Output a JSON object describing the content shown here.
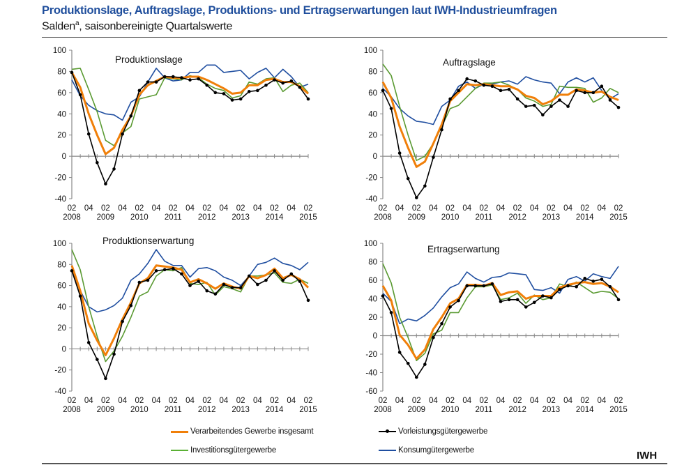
{
  "header": {
    "title": "Produktionslage, Auftragslage, Produktions- und Ertragserwartungen laut IWH-Industrieumfragen",
    "subtitle_main": "Salden",
    "subtitle_sup": "a",
    "subtitle_rest": ", saisonbereinigte Quartalswerte"
  },
  "legend": [
    {
      "name": "Verarbeitendes Gewerbe insgesamt",
      "color": "#f07f09"
    },
    {
      "name": "Vorleistungsgütergewerbe",
      "color": "#000000"
    },
    {
      "name": "Investitionsgütergewerbe",
      "color": "#5a9a32"
    },
    {
      "name": "Konsumgütergewerbe",
      "color": "#1f4ea0"
    }
  ],
  "source_label": "IWH",
  "chart_data": [
    {
      "type": "line",
      "title": "Produktionslage",
      "x_tick_labels": [
        "02",
        "04",
        "02",
        "04",
        "02",
        "04",
        "02",
        "04",
        "02",
        "04",
        "02",
        "04",
        "02",
        "04",
        "02"
      ],
      "x_year_labels": [
        "2008",
        "2009",
        "2010",
        "2011",
        "2012",
        "2013",
        "2014",
        "2015"
      ],
      "x_range": [
        "2008Q2",
        "2015Q2"
      ],
      "ylim": [
        -40,
        100
      ],
      "y_ticks": [
        -40,
        -20,
        0,
        20,
        40,
        60,
        80,
        100
      ],
      "grid": false,
      "series": [
        {
          "name": "Verarbeitendes Gewerbe insgesamt",
          "values": [
            79,
            65,
            40,
            20,
            2,
            8,
            25,
            38,
            58,
            67,
            71,
            75,
            74,
            74,
            75,
            75,
            72,
            68,
            64,
            59,
            60,
            67,
            67,
            72,
            73,
            70,
            70,
            66,
            59
          ]
        },
        {
          "name": "Vorleistungsgütergewerbe",
          "values": [
            79,
            58,
            21,
            -6,
            -26,
            -12,
            21,
            38,
            62,
            70,
            70,
            75,
            75,
            74,
            72,
            73,
            67,
            60,
            59,
            53,
            54,
            61,
            62,
            67,
            72,
            69,
            71,
            65,
            54
          ]
        },
        {
          "name": "Investitionsgütergewerbe",
          "values": [
            82,
            83,
            63,
            42,
            15,
            10,
            22,
            28,
            54,
            56,
            58,
            74,
            73,
            72,
            76,
            74,
            68,
            64,
            62,
            55,
            57,
            70,
            68,
            73,
            74,
            61,
            67,
            69,
            60
          ]
        },
        {
          "name": "Konsumgütergewerbe",
          "values": [
            72,
            57,
            48,
            43,
            40,
            39,
            34,
            51,
            56,
            70,
            83,
            74,
            71,
            72,
            79,
            79,
            86,
            86,
            79,
            80,
            81,
            73,
            79,
            83,
            74,
            82,
            75,
            65,
            68
          ]
        }
      ]
    },
    {
      "type": "line",
      "title": "Auftragslage",
      "x_tick_labels": [
        "02",
        "04",
        "02",
        "04",
        "02",
        "04",
        "02",
        "04",
        "02",
        "04",
        "02",
        "04",
        "02",
        "04",
        "02"
      ],
      "x_year_labels": [
        "2008",
        "2009",
        "2010",
        "2011",
        "2012",
        "2013",
        "2014",
        "2015"
      ],
      "x_range": [
        "2008Q2",
        "2015Q2"
      ],
      "ylim": [
        -40,
        100
      ],
      "y_ticks": [
        -40,
        -20,
        0,
        20,
        40,
        60,
        80,
        100
      ],
      "grid": false,
      "series": [
        {
          "name": "Verarbeitendes Gewerbe insgesamt",
          "values": [
            70,
            55,
            28,
            8,
            -10,
            -5,
            12,
            30,
            52,
            60,
            68,
            67,
            68,
            67,
            66,
            66,
            63,
            57,
            55,
            49,
            52,
            58,
            58,
            63,
            62,
            60,
            61,
            56,
            53
          ]
        },
        {
          "name": "Vorleistungsgütergewerbe",
          "values": [
            62,
            45,
            3,
            -21,
            -39,
            -28,
            -1,
            25,
            54,
            62,
            73,
            71,
            67,
            66,
            62,
            63,
            54,
            47,
            48,
            39,
            47,
            53,
            47,
            62,
            60,
            60,
            66,
            53,
            46
          ]
        },
        {
          "name": "Investitionsgütergewerbe",
          "values": [
            87,
            76,
            47,
            20,
            -4,
            0,
            12,
            28,
            45,
            48,
            56,
            64,
            69,
            69,
            70,
            67,
            63,
            55,
            52,
            47,
            49,
            66,
            65,
            65,
            64,
            51,
            55,
            64,
            60
          ]
        },
        {
          "name": "Konsumgütergewerbe",
          "values": [
            64,
            56,
            45,
            38,
            33,
            32,
            30,
            47,
            53,
            66,
            70,
            64,
            68,
            68,
            70,
            71,
            68,
            75,
            72,
            70,
            69,
            59,
            70,
            74,
            70,
            74,
            62,
            54,
            59
          ]
        }
      ]
    },
    {
      "type": "line",
      "title": "Produktionserwartung",
      "x_tick_labels": [
        "02",
        "04",
        "02",
        "04",
        "02",
        "04",
        "02",
        "04",
        "02",
        "04",
        "02",
        "04",
        "02",
        "04",
        "02"
      ],
      "x_year_labels": [
        "2008",
        "2009",
        "2010",
        "2011",
        "2012",
        "2013",
        "2014",
        "2015"
      ],
      "x_range": [
        "2008Q2",
        "2015Q2"
      ],
      "ylim": [
        -40,
        100
      ],
      "y_ticks": [
        -40,
        -20,
        0,
        20,
        40,
        60,
        80,
        100
      ],
      "grid": false,
      "series": [
        {
          "name": "Verarbeitendes Gewerbe insgesamt",
          "values": [
            79,
            55,
            24,
            8,
            -6,
            10,
            28,
            44,
            62,
            67,
            79,
            78,
            77,
            75,
            63,
            66,
            62,
            57,
            62,
            59,
            57,
            69,
            67,
            70,
            76,
            67,
            70,
            66,
            58
          ]
        },
        {
          "name": "Vorleistungsgütergewerbe",
          "values": [
            74,
            50,
            6,
            -10,
            -28,
            -5,
            26,
            41,
            63,
            65,
            74,
            75,
            76,
            71,
            60,
            64,
            55,
            52,
            61,
            58,
            58,
            69,
            61,
            65,
            74,
            65,
            71,
            64,
            46
          ]
        },
        {
          "name": "Investitionsgütergewerbe",
          "values": [
            94,
            75,
            40,
            12,
            -12,
            -2,
            12,
            30,
            50,
            54,
            69,
            75,
            74,
            77,
            62,
            61,
            63,
            51,
            59,
            57,
            54,
            69,
            69,
            70,
            72,
            63,
            62,
            66,
            62
          ]
        },
        {
          "name": "Konsumgütergewerbe",
          "values": [
            75,
            55,
            40,
            35,
            37,
            41,
            48,
            65,
            71,
            81,
            94,
            83,
            79,
            79,
            68,
            76,
            77,
            74,
            68,
            65,
            60,
            69,
            80,
            82,
            86,
            81,
            79,
            75,
            82
          ]
        }
      ]
    },
    {
      "type": "line",
      "title": "Ertragserwartung",
      "x_tick_labels": [
        "02",
        "04",
        "02",
        "04",
        "02",
        "04",
        "02",
        "04",
        "02",
        "04",
        "02",
        "04",
        "02",
        "04",
        "02"
      ],
      "x_year_labels": [
        "2008",
        "2009",
        "2010",
        "2011",
        "2012",
        "2013",
        "2014",
        "2015"
      ],
      "x_range": [
        "2008Q2",
        "2015Q2"
      ],
      "ylim": [
        -60,
        100
      ],
      "y_ticks": [
        -60,
        -40,
        -20,
        0,
        20,
        40,
        60,
        80,
        100
      ],
      "grid": false,
      "series": [
        {
          "name": "Verarbeitendes Gewerbe insgesamt",
          "values": [
            54,
            38,
            1,
            -10,
            -25,
            -15,
            7,
            20,
            35,
            40,
            55,
            55,
            54,
            57,
            44,
            47,
            48,
            40,
            43,
            43,
            43,
            52,
            55,
            57,
            58,
            56,
            57,
            53,
            47
          ]
        },
        {
          "name": "Vorleistungsgütergewerbe",
          "values": [
            43,
            25,
            -18,
            -30,
            -45,
            -31,
            -2,
            13,
            31,
            38,
            54,
            54,
            54,
            56,
            37,
            39,
            39,
            31,
            36,
            43,
            41,
            50,
            54,
            53,
            62,
            59,
            61,
            53,
            39
          ]
        },
        {
          "name": "Investitionsgütergewerbe",
          "values": [
            78,
            57,
            20,
            -2,
            -27,
            -19,
            2,
            6,
            25,
            25,
            41,
            53,
            53,
            55,
            39,
            41,
            46,
            35,
            44,
            39,
            41,
            56,
            53,
            58,
            52,
            46,
            48,
            47,
            40
          ]
        },
        {
          "name": "Konsumgütergewerbe",
          "values": [
            46,
            37,
            13,
            18,
            16,
            22,
            30,
            42,
            52,
            56,
            69,
            62,
            58,
            63,
            64,
            68,
            67,
            66,
            50,
            49,
            52,
            46,
            61,
            64,
            59,
            67,
            64,
            62,
            75
          ]
        }
      ]
    }
  ]
}
